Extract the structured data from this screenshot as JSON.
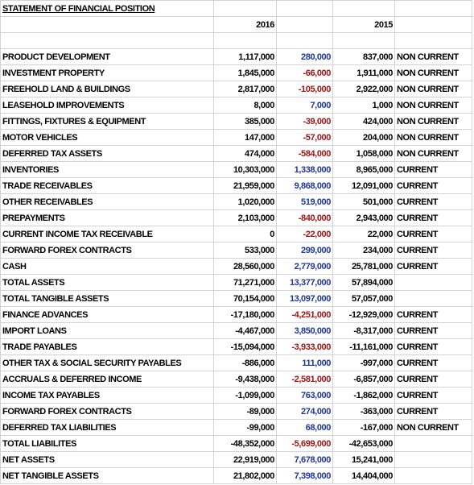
{
  "header": {
    "title": "STATEMENT OF FINANCIAL POSITION",
    "years": [
      "2016",
      "2015"
    ]
  },
  "table": {
    "rows": [
      {
        "label": "PRODUCT DEVELOPMENT",
        "current": "1,117,000",
        "change": "280,000",
        "prior": "837,000",
        "class": "NON CURRENT"
      },
      {
        "label": "INVESTMENT PROPERTY",
        "current": "1,845,000",
        "change": "-66,000",
        "prior": "1,911,000",
        "class": "NON CURRENT"
      },
      {
        "label": "FREEHOLD LAND & BUILDINGS",
        "current": "2,817,000",
        "change": "-105,000",
        "prior": "2,922,000",
        "class": "NON CURRENT"
      },
      {
        "label": "LEASEHOLD IMPROVEMENTS",
        "current": "8,000",
        "change": "7,000",
        "prior": "1,000",
        "class": "NON CURRENT"
      },
      {
        "label": "FITTINGS, FIXTURES & EQUIPMENT",
        "current": "385,000",
        "change": "-39,000",
        "prior": "424,000",
        "class": "NON CURRENT"
      },
      {
        "label": "MOTOR VEHICLES",
        "current": "147,000",
        "change": "-57,000",
        "prior": "204,000",
        "class": "NON CURRENT"
      },
      {
        "label": "DEFERRED TAX ASSETS",
        "current": "474,000",
        "change": "-584,000",
        "prior": "1,058,000",
        "class": "NON CURRENT"
      },
      {
        "label": "INVENTORIES",
        "current": "10,303,000",
        "change": "1,338,000",
        "prior": "8,965,000",
        "class": "CURRENT"
      },
      {
        "label": "TRADE RECEIVABLES",
        "current": "21,959,000",
        "change": "9,868,000",
        "prior": "12,091,000",
        "class": "CURRENT"
      },
      {
        "label": "OTHER RECEIVABLES",
        "current": "1,020,000",
        "change": "519,000",
        "prior": "501,000",
        "class": "CURRENT"
      },
      {
        "label": "PREPAYMENTS",
        "current": "2,103,000",
        "change": "-840,000",
        "prior": "2,943,000",
        "class": "CURRENT"
      },
      {
        "label": "CURRENT INCOME TAX RECEIVABLE",
        "current": "0",
        "change": "-22,000",
        "prior": "22,000",
        "class": "CURRENT"
      },
      {
        "label": "FORWARD FOREX CONTRACTS",
        "current": "533,000",
        "change": "299,000",
        "prior": "234,000",
        "class": "CURRENT"
      },
      {
        "label": "CASH",
        "current": "28,560,000",
        "change": "2,779,000",
        "prior": "25,781,000",
        "class": "CURRENT"
      },
      {
        "label": "TOTAL ASSETS",
        "current": "71,271,000",
        "change": "13,377,000",
        "prior": "57,894,000"
      },
      {
        "label": "TOTAL TANGIBLE ASSETS",
        "current": "70,154,000",
        "change": "13,097,000",
        "prior": "57,057,000"
      },
      {
        "label": "FINANCE ADVANCES",
        "current": "-17,180,000",
        "change": "-4,251,000",
        "prior": "-12,929,000",
        "class": "CURRENT"
      },
      {
        "label": "IMPORT LOANS",
        "current": "-4,467,000",
        "change": "3,850,000",
        "prior": "-8,317,000",
        "class": "CURRENT"
      },
      {
        "label": "TRADE PAYABLES",
        "current": "-15,094,000",
        "change": "-3,933,000",
        "prior": "-11,161,000",
        "class": "CURRENT"
      },
      {
        "label": "OTHER TAX & SOCIAL SECURITY PAYABLES",
        "current": "-886,000",
        "change": "111,000",
        "prior": "-997,000",
        "class": "CURRENT"
      },
      {
        "label": "ACCRUALS & DEFERRED INCOME",
        "current": "-9,438,000",
        "change": "-2,581,000",
        "prior": "-6,857,000",
        "class": "CURRENT"
      },
      {
        "label": "INCOME TAX PAYABLES",
        "current": "-1,099,000",
        "change": "763,000",
        "prior": "-1,862,000",
        "class": "CURRENT"
      },
      {
        "label": "FORWARD FOREX CONTRACTS",
        "current": "-89,000",
        "change": "274,000",
        "prior": "-363,000",
        "class": "CURRENT"
      },
      {
        "label": "DEFERRED TAX LIABILITIES",
        "current": "-99,000",
        "change": "68,000",
        "prior": "-167,000",
        "class": "NON CURRENT"
      },
      {
        "label": "TOTAL LIABILITES",
        "current": "-48,352,000",
        "change": "-5,699,000",
        "prior": "-42,653,000"
      },
      {
        "label": "NET ASSETS",
        "current": "22,919,000",
        "change": "7,678,000",
        "prior": "15,241,000"
      },
      {
        "label": "NET TANGIBLE ASSETS",
        "current": "21,802,000",
        "change": "7,398,000",
        "prior": "14,404,000"
      }
    ]
  }
}
